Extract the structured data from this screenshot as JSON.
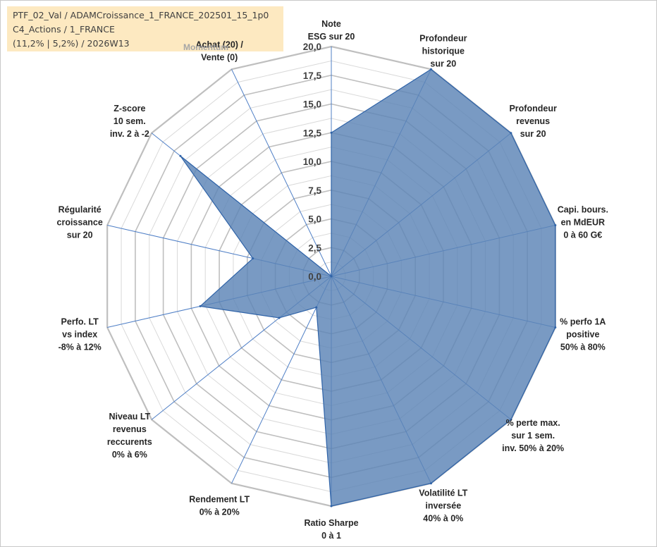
{
  "header": {
    "line1": "PTF_02_Val / ADAMCroissance_1_FRANCE_202501_15_1p0",
    "line2": "C4_Actions / 1_FRANCE",
    "line3": "(11,2% | 5,2%) / 2026W13"
  },
  "annotation": "Momentum",
  "colors": {
    "fill": "#5b84b6",
    "stroke": "#2f63a8",
    "grid_major": "#bfbfbf",
    "grid_minor": "#d9d9d9",
    "spoke": "#4f7fc6",
    "info_bg": "#fde9c1"
  },
  "chart_data": {
    "type": "radar",
    "r_range": [
      0,
      20
    ],
    "tick_labels": [
      "0,0",
      "2,5",
      "5,0",
      "7,5",
      "10,0",
      "12,5",
      "15,0",
      "17,5",
      "20,0"
    ],
    "categories": [
      [
        "Note",
        "ESG sur 20"
      ],
      [
        "Profondeur",
        "historique",
        "sur 20"
      ],
      [
        "Profondeur",
        "revenus",
        "sur 20"
      ],
      [
        "Capi. bours.",
        "en MdEUR",
        "0 à 60 G€"
      ],
      [
        "% perfo 1A",
        "positive",
        "50% à 80%"
      ],
      [
        "% perte max.",
        "sur 1 sem.",
        "inv. 50% à 20%"
      ],
      [
        "Volatilité LT",
        "inversée",
        "40% à 0%"
      ],
      [
        "Ratio Sharpe",
        "0 à 1"
      ],
      [
        "Rendement LT",
        "0% à 20%"
      ],
      [
        "Niveau LT",
        "revenus",
        "reccurents",
        "0% à 6%"
      ],
      [
        "Perfo. LT",
        "vs index",
        "-8% à 12%"
      ],
      [
        "Régularité",
        "croissance",
        "sur 20"
      ],
      [
        "Z-score",
        "10 sem.",
        "inv. 2 à -2"
      ],
      [
        "Achat (20) /",
        "Vente (0)"
      ]
    ],
    "series": [
      {
        "values": [
          12.5,
          20,
          20,
          20,
          20,
          20,
          20,
          20,
          3.0,
          5.8,
          11.7,
          7.0,
          16.8,
          0
        ]
      }
    ]
  }
}
